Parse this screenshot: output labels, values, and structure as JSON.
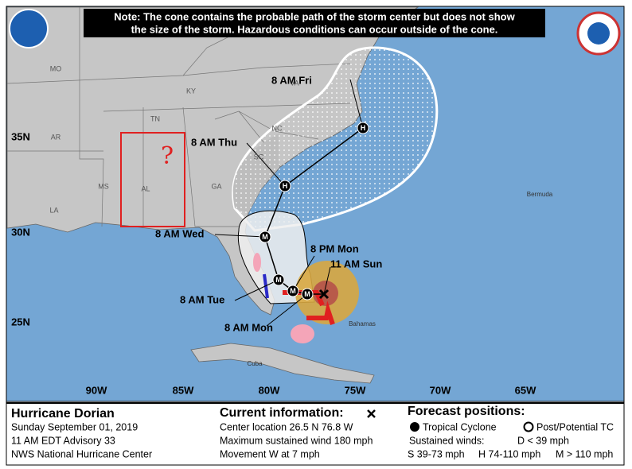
{
  "note": {
    "line1": "Note: The cone contains the probable path of the storm center but does not show",
    "line2": "the size of the storm. Hazardous conditions can occur outside of the cone."
  },
  "map": {
    "state_labels": [
      "MO",
      "KY",
      "VA",
      "TN",
      "NC",
      "AR",
      "SC",
      "MS",
      "AL",
      "GA",
      "LA"
    ],
    "lat_labels": [
      "35N",
      "30N",
      "25N"
    ],
    "lon_labels": [
      "90W",
      "85W",
      "80W",
      "75W",
      "70W",
      "65W"
    ],
    "forecast_labels": [
      "8 AM Fri",
      "8 AM Thu",
      "8 AM Wed",
      "8 PM Mon",
      "11 AM Sun",
      "8 AM Tue",
      "8 AM Mon"
    ],
    "place_labels": [
      "Bermuda",
      "Bahamas",
      "Cuba"
    ],
    "markers": [
      "H",
      "H",
      "M",
      "M",
      "M",
      "M"
    ],
    "annotation": "?"
  },
  "footer": {
    "storm": "Hurricane Dorian",
    "date": "Sunday September 01, 2019",
    "advisory": "11 AM EDT Advisory 33",
    "center": "NWS National Hurricane Center",
    "current_title": "Current information:",
    "location": "Center location 26.5 N 76.8 W",
    "wind": "Maximum sustained wind 180 mph",
    "movement": "Movement W at 7 mph",
    "forecast_title": "Forecast positions:",
    "tropical": "Tropical Cyclone",
    "post": "Post/Potential TC",
    "sustained": "Sustained winds:",
    "d": "D < 39 mph",
    "s": "S 39-73 mph",
    "h": "H 74-110 mph",
    "m": "M > 110 mph"
  }
}
